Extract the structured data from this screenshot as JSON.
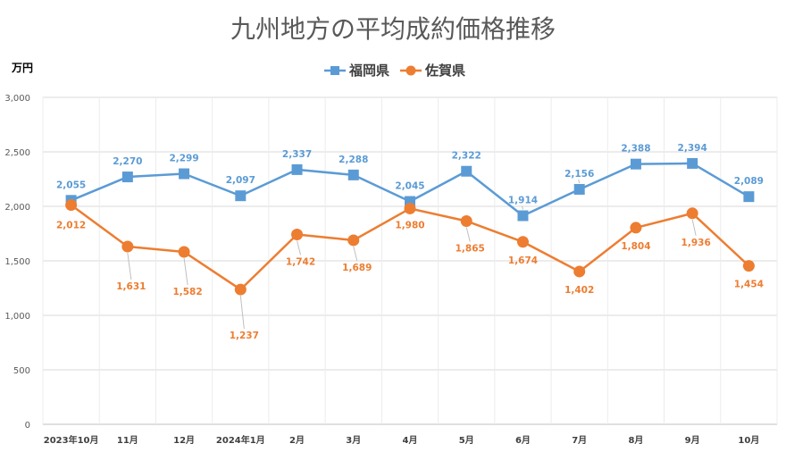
{
  "chart_data": {
    "type": "line",
    "title": "九州地方の平均成約価格推移",
    "ylabel": "万円",
    "xlabel": "",
    "ylim": [
      0,
      3000
    ],
    "yticks": [
      "0",
      "500",
      "1,000",
      "1,500",
      "2,000",
      "2,500",
      "3,000"
    ],
    "ytick_values": [
      0,
      500,
      1000,
      1500,
      2000,
      2500,
      3000
    ],
    "categories": [
      "2023年10月",
      "11月",
      "12月",
      "2024年1月",
      "2月",
      "3月",
      "4月",
      "5月",
      "6月",
      "7月",
      "8月",
      "9月",
      "10月"
    ],
    "legend_position": "top",
    "grid": true,
    "series": [
      {
        "name": "福岡県",
        "color": "#5b9bd5",
        "marker": "square",
        "values": [
          2055,
          2270,
          2299,
          2097,
          2337,
          2288,
          2045,
          2322,
          1914,
          2156,
          2388,
          2394,
          2089
        ],
        "labels": [
          "2,055",
          "2,270",
          "2,299",
          "2,097",
          "2,337",
          "2,288",
          "2,045",
          "2,322",
          "1,914",
          "2,156",
          "2,388",
          "2,394",
          "2,089"
        ]
      },
      {
        "name": "佐賀県",
        "color": "#ed7d31",
        "marker": "circle",
        "values": [
          2012,
          1631,
          1582,
          1237,
          1742,
          1689,
          1980,
          1865,
          1674,
          1402,
          1804,
          1936,
          1454
        ],
        "labels": [
          "2,012",
          "1,631",
          "1,582",
          "1,237",
          "1,742",
          "1,689",
          "1,980",
          "1,865",
          "1,674",
          "1,402",
          "1,804",
          "1,936",
          "1,454"
        ]
      }
    ]
  }
}
